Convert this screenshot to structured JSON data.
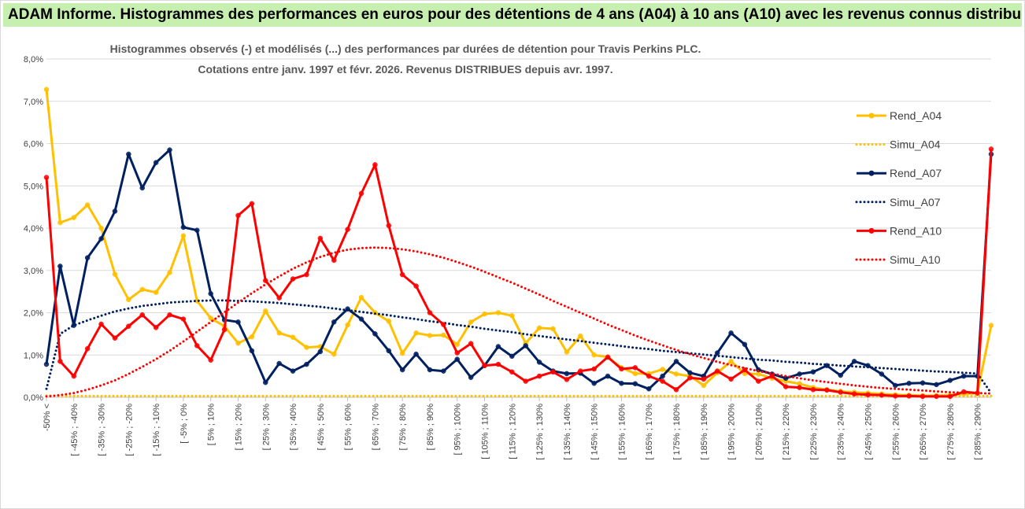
{
  "header": {
    "banner": "ADAM Informe. Histogrammes des performances en euros pour des détentions de 4 ans (A04) à 10 ans (A10) avec les revenus connus distribués"
  },
  "chart_data": {
    "type": "line",
    "title": "Histogrammes observés (-) et modélisés (...) des performances par durées de détention pour Travis Perkins PLC.",
    "subtitle": "Cotations entre janv. 1997 et févr. 2026. Revenus DISTRIBUES depuis avr. 1997.",
    "ylim": [
      0,
      8
    ],
    "yticks": [
      "0,0%",
      "1,0%",
      "2,0%",
      "3,0%",
      "4,0%",
      "5,0%",
      "6,0%",
      "7,0%",
      "8,0%"
    ],
    "xticks": [
      "-50% <",
      "[ -45% ; -40%",
      "[ -35% ; -30%",
      "[ -25% ; -20%",
      "[ -15% ; -10%",
      "[ -5% ; 0%",
      "[ 5% ; 10%",
      "[ 15% ; 20%",
      "[ 25% ; 30%",
      "[ 35% ; 40%",
      "[ 45% ; 50%",
      "[ 55% ; 60%",
      "[ 65% ; 70%",
      "[ 75% ; 80%",
      "[ 85% ; 90%",
      "[ 95% ; 100%",
      "[ 105% ; 110%",
      "[ 115% ; 120%",
      "[ 125% ; 130%",
      "[ 135% ; 140%",
      "[ 145% ; 150%",
      "[ 155% ; 160%",
      "[ 165% ; 170%",
      "[ 175% ; 180%",
      "[ 185% ; 190%",
      "[ 195% ; 200%",
      "[ 205% ; 210%",
      "[ 215% ; 220%",
      "[ 225% ; 230%",
      "[ 235% ; 240%",
      "[ 245% ; 250%",
      "[ 255% ; 260%",
      "[ 265% ; 270%",
      "[ 275% ; 280%",
      "[ 285% ; 290%"
    ],
    "n_points": 70,
    "series": [
      {
        "name": "Rend_A04",
        "color": "#ffc000",
        "style": "solid",
        "markers": true,
        "values": [
          7.28,
          4.13,
          4.25,
          4.55,
          4.0,
          2.91,
          2.31,
          2.55,
          2.48,
          2.95,
          3.82,
          2.28,
          1.87,
          1.68,
          1.28,
          1.43,
          2.04,
          1.52,
          1.42,
          1.18,
          1.2,
          1.02,
          1.71,
          2.36,
          2.0,
          1.8,
          1.04,
          1.52,
          1.46,
          1.47,
          1.25,
          1.78,
          1.97,
          2.0,
          1.93,
          1.28,
          1.64,
          1.62,
          1.07,
          1.45,
          1.0,
          0.95,
          0.7,
          0.56,
          0.56,
          0.66,
          0.55,
          0.5,
          0.28,
          0.58,
          0.85,
          0.56,
          0.55,
          0.45,
          0.38,
          0.32,
          0.23,
          0.18,
          0.14,
          0.12,
          0.1,
          0.08,
          0.06,
          0.05,
          0.04,
          0.04,
          0.05,
          0.08,
          0.1,
          1.7
        ]
      },
      {
        "name": "Simu_A04",
        "color": "#ffc000",
        "style": "dotted",
        "markers": false,
        "values": [
          0.04,
          0.03,
          0.03,
          0.03,
          0.03,
          0.03,
          0.03,
          0.03,
          0.03,
          0.03,
          0.03,
          0.03,
          0.03,
          0.03,
          0.03,
          0.03,
          0.03,
          0.03,
          0.03,
          0.03,
          0.03,
          0.03,
          0.03,
          0.03,
          0.03,
          0.03,
          0.03,
          0.03,
          0.03,
          0.03,
          0.03,
          0.03,
          0.03,
          0.03,
          0.03,
          0.03,
          0.03,
          0.03,
          0.03,
          0.03,
          0.03,
          0.03,
          0.03,
          0.03,
          0.03,
          0.03,
          0.03,
          0.03,
          0.03,
          0.03,
          0.03,
          0.03,
          0.03,
          0.03,
          0.03,
          0.03,
          0.03,
          0.03,
          0.03,
          0.03,
          0.03,
          0.03,
          0.03,
          0.03,
          0.03,
          0.03,
          0.03,
          0.03,
          0.03,
          0.03
        ]
      },
      {
        "name": "Rend_A07",
        "color": "#002060",
        "style": "solid",
        "markers": true,
        "values": [
          0.78,
          3.1,
          1.7,
          3.3,
          3.75,
          4.4,
          5.75,
          4.95,
          5.55,
          5.85,
          4.02,
          3.95,
          2.45,
          1.83,
          1.78,
          1.1,
          0.35,
          0.8,
          0.62,
          0.78,
          1.08,
          1.78,
          2.09,
          1.85,
          1.5,
          1.1,
          0.65,
          1.02,
          0.65,
          0.62,
          0.9,
          0.47,
          0.75,
          1.2,
          0.97,
          1.22,
          0.83,
          0.62,
          0.56,
          0.57,
          0.33,
          0.5,
          0.33,
          0.32,
          0.2,
          0.5,
          0.85,
          0.58,
          0.5,
          1.05,
          1.52,
          1.25,
          0.65,
          0.55,
          0.45,
          0.55,
          0.6,
          0.75,
          0.52,
          0.85,
          0.75,
          0.55,
          0.28,
          0.33,
          0.34,
          0.3,
          0.4,
          0.5,
          0.5,
          5.75
        ]
      },
      {
        "name": "Simu_A07",
        "color": "#002060",
        "style": "dotted",
        "markers": false,
        "values": [
          0.2,
          1.5,
          1.7,
          1.82,
          1.93,
          2.03,
          2.1,
          2.16,
          2.2,
          2.24,
          2.26,
          2.28,
          2.29,
          2.29,
          2.28,
          2.27,
          2.25,
          2.23,
          2.2,
          2.17,
          2.14,
          2.1,
          2.06,
          2.02,
          1.98,
          1.94,
          1.89,
          1.85,
          1.8,
          1.76,
          1.71,
          1.67,
          1.62,
          1.58,
          1.54,
          1.49,
          1.45,
          1.41,
          1.37,
          1.33,
          1.29,
          1.25,
          1.21,
          1.17,
          1.14,
          1.1,
          1.07,
          1.04,
          1.01,
          0.98,
          0.95,
          0.92,
          0.89,
          0.87,
          0.84,
          0.82,
          0.79,
          0.77,
          0.75,
          0.73,
          0.71,
          0.69,
          0.67,
          0.65,
          0.63,
          0.61,
          0.6,
          0.58,
          0.56,
          0.1
        ]
      },
      {
        "name": "Rend_A10",
        "color": "#ff0000",
        "style": "solid",
        "markers": true,
        "values": [
          5.2,
          0.85,
          0.5,
          1.15,
          1.73,
          1.4,
          1.68,
          1.95,
          1.65,
          1.95,
          1.85,
          1.22,
          0.88,
          1.6,
          4.3,
          4.58,
          2.76,
          2.35,
          2.8,
          2.9,
          3.76,
          3.24,
          3.97,
          4.82,
          5.5,
          4.06,
          2.9,
          2.63,
          2.0,
          1.72,
          1.05,
          1.27,
          0.75,
          0.78,
          0.6,
          0.38,
          0.5,
          0.6,
          0.42,
          0.62,
          0.67,
          0.95,
          0.67,
          0.7,
          0.5,
          0.38,
          0.18,
          0.46,
          0.43,
          0.62,
          0.43,
          0.65,
          0.38,
          0.5,
          0.25,
          0.23,
          0.18,
          0.17,
          0.12,
          0.08,
          0.06,
          0.05,
          0.03,
          0.03,
          0.02,
          0.02,
          0.02,
          0.13,
          0.1,
          5.87
        ]
      },
      {
        "name": "Simu_A10",
        "color": "#ff0000",
        "style": "dotted",
        "markers": false,
        "values": [
          0.02,
          0.05,
          0.1,
          0.18,
          0.28,
          0.4,
          0.55,
          0.72,
          0.9,
          1.1,
          1.32,
          1.55,
          1.78,
          2.01,
          2.24,
          2.46,
          2.67,
          2.86,
          3.04,
          3.19,
          3.32,
          3.42,
          3.49,
          3.53,
          3.54,
          3.53,
          3.5,
          3.45,
          3.38,
          3.3,
          3.2,
          3.09,
          2.97,
          2.84,
          2.71,
          2.57,
          2.43,
          2.28,
          2.14,
          2.0,
          1.86,
          1.72,
          1.59,
          1.46,
          1.34,
          1.23,
          1.12,
          1.02,
          0.93,
          0.84,
          0.76,
          0.69,
          0.62,
          0.56,
          0.5,
          0.45,
          0.4,
          0.36,
          0.32,
          0.28,
          0.25,
          0.22,
          0.2,
          0.18,
          0.16,
          0.14,
          0.12,
          0.11,
          0.1,
          0.09
        ]
      }
    ],
    "legend": [
      "Rend_A04",
      "Simu_A04",
      "Rend_A07",
      "Simu_A07",
      "Rend_A10",
      "Simu_A10"
    ],
    "legend_position": "right"
  }
}
